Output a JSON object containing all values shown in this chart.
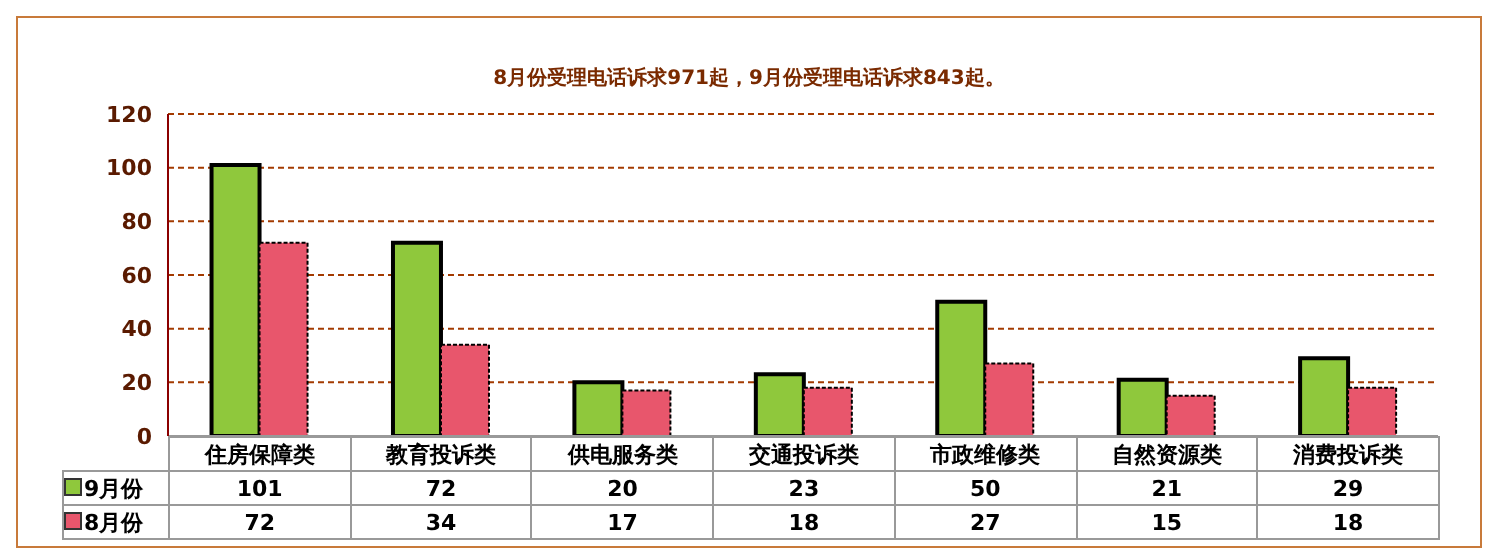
{
  "chart_data": {
    "type": "bar",
    "title": "8月份受理电话诉求971起，9月份受理电话诉求843起。",
    "categories": [
      "住房保障类",
      "教育投诉类",
      "供电服务类",
      "交通投诉类",
      "市政维修类",
      "自然资源类",
      "消费投诉类"
    ],
    "series": [
      {
        "name": "9月份",
        "color": "#8fc83c",
        "values": [
          101,
          72,
          20,
          23,
          50,
          21,
          29
        ]
      },
      {
        "name": "8月份",
        "color": "#e8566c",
        "values": [
          72,
          34,
          17,
          18,
          27,
          15,
          18
        ]
      }
    ],
    "ylim": [
      0,
      120
    ],
    "yticks": [
      0,
      20,
      40,
      60,
      80,
      100,
      120
    ],
    "grid": "y",
    "legend": "bottom left",
    "data_labels": true
  }
}
